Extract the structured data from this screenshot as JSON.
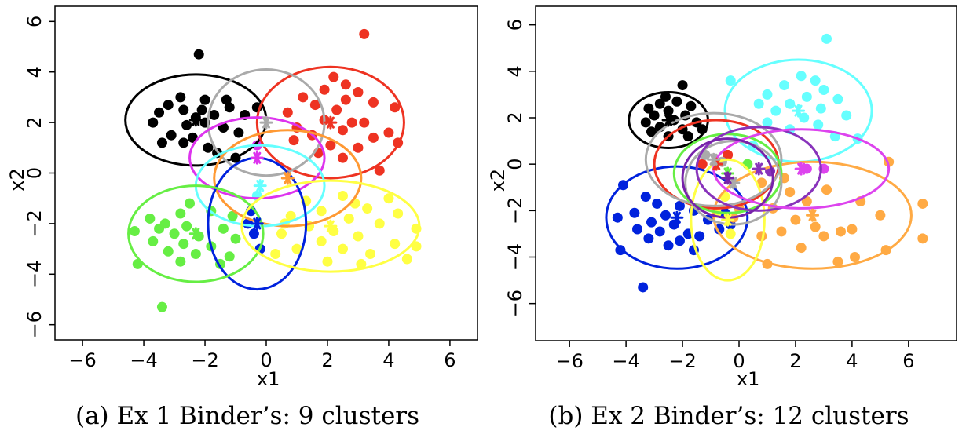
{
  "chart_data": [
    {
      "type": "scatter",
      "caption": "(a) Ex 1 Binder’s: 9 clusters",
      "xlabel": "x1",
      "ylabel": "x2",
      "xlim": [
        -6.9,
        6.9
      ],
      "ylim": [
        -6.6,
        6.6
      ],
      "xticks": [
        -6,
        -4,
        -2,
        0,
        2,
        4,
        6
      ],
      "yticks": [
        -6,
        -4,
        -2,
        0,
        2,
        4,
        6
      ],
      "grid": false,
      "clusters": [
        {
          "color": "#000000",
          "center": [
            -2.3,
            2.1
          ],
          "ellipse": {
            "rx": 2.3,
            "ry": 1.8
          },
          "points": [
            [
              -2.2,
              4.7
            ],
            [
              -2.8,
              3.0
            ],
            [
              -3.2,
              2.7
            ],
            [
              -2.0,
              2.9
            ],
            [
              -1.3,
              2.9
            ],
            [
              -0.3,
              2.6
            ],
            [
              -1.2,
              2.6
            ],
            [
              -2.7,
              2.5
            ],
            [
              -3.5,
              2.4
            ],
            [
              -0.7,
              2.3
            ],
            [
              -2.3,
              2.2
            ],
            [
              -3.7,
              2.0
            ],
            [
              -2.0,
              2.0
            ],
            [
              -1.4,
              1.8
            ],
            [
              -0.9,
              1.6
            ],
            [
              -3.1,
              1.5
            ],
            [
              -2.4,
              1.4
            ],
            [
              -3.4,
              1.2
            ],
            [
              -2.7,
              1.2
            ],
            [
              -1.9,
              1.0
            ],
            [
              -1.6,
              0.8
            ],
            [
              -1.0,
              0.6
            ],
            [
              -2.1,
              2.5
            ],
            [
              -1.7,
              2.3
            ],
            [
              -2.6,
              1.9
            ]
          ]
        },
        {
          "color": "#ee3322",
          "center": [
            2.1,
            2.0
          ],
          "ellipse": {
            "rx": 2.4,
            "ry": 2.2
          },
          "points": [
            [
              3.2,
              5.5
            ],
            [
              2.2,
              3.8
            ],
            [
              2.6,
              3.5
            ],
            [
              1.9,
              3.3
            ],
            [
              3.0,
              3.2
            ],
            [
              1.2,
              3.0
            ],
            [
              2.6,
              2.9
            ],
            [
              1.6,
              2.7
            ],
            [
              3.5,
              2.8
            ],
            [
              2.3,
              2.5
            ],
            [
              4.2,
              2.6
            ],
            [
              0.7,
              2.4
            ],
            [
              1.9,
              2.1
            ],
            [
              3.2,
              2.0
            ],
            [
              2.8,
              2.0
            ],
            [
              1.0,
              1.8
            ],
            [
              2.5,
              1.7
            ],
            [
              4.0,
              1.6
            ],
            [
              1.5,
              1.5
            ],
            [
              3.5,
              1.4
            ],
            [
              0.9,
              1.3
            ],
            [
              2.1,
              1.1
            ],
            [
              3.0,
              1.0
            ],
            [
              4.3,
              1.2
            ],
            [
              1.7,
              0.8
            ],
            [
              2.5,
              0.6
            ],
            [
              3.7,
              0.1
            ]
          ]
        },
        {
          "color": "#aaaaaa",
          "center": [
            0.0,
            2.0
          ],
          "ellipse": {
            "rx": 1.9,
            "ry": 2.1
          },
          "points": []
        },
        {
          "color": "#dd33ee",
          "center": [
            -0.3,
            0.6
          ],
          "ellipse": {
            "rx": 2.2,
            "ry": 1.6
          },
          "points": [
            [
              -0.3,
              1.1
            ]
          ]
        },
        {
          "color": "#ff9933",
          "center": [
            0.7,
            -0.2
          ],
          "ellipse": {
            "rx": 2.4,
            "ry": 1.9
          },
          "points": []
        },
        {
          "color": "#66ffff",
          "center": [
            -0.2,
            -0.5
          ],
          "ellipse": {
            "rx": 2.1,
            "ry": 1.6
          },
          "points": [
            [
              -0.3,
              -0.9
            ]
          ]
        },
        {
          "color": "#0022dd",
          "center": [
            -0.3,
            -2.0
          ],
          "ellipse": {
            "rx": 1.6,
            "ry": 2.6
          },
          "points": [
            [
              -0.5,
              -1.5
            ],
            [
              -0.4,
              -2.4
            ],
            [
              -0.2,
              -3.0
            ],
            [
              -0.6,
              -2.0
            ]
          ]
        },
        {
          "color": "#66ee44",
          "center": [
            -2.3,
            -2.4
          ],
          "ellipse": {
            "rx": 2.2,
            "ry": 1.9
          },
          "points": [
            [
              -3.4,
              -5.3
            ],
            [
              -4.2,
              -3.6
            ],
            [
              -3.8,
              -1.8
            ],
            [
              -2.8,
              -1.6
            ],
            [
              -1.8,
              -1.5
            ],
            [
              -3.3,
              -2.0
            ],
            [
              -2.6,
              -2.1
            ],
            [
              -1.4,
              -2.2
            ],
            [
              -4.3,
              -2.3
            ],
            [
              -3.0,
              -2.4
            ],
            [
              -2.2,
              -2.5
            ],
            [
              -1.0,
              -2.6
            ],
            [
              -3.7,
              -2.7
            ],
            [
              -2.7,
              -2.8
            ],
            [
              -1.8,
              -2.9
            ],
            [
              -3.2,
              -3.1
            ],
            [
              -2.3,
              -3.2
            ],
            [
              -1.2,
              -3.3
            ],
            [
              -2.8,
              -3.5
            ],
            [
              -1.5,
              -3.6
            ],
            [
              -3.5,
              -2.2
            ],
            [
              -1.1,
              -1.7
            ],
            [
              -2.5,
              -1.2
            ]
          ]
        },
        {
          "color": "#ffff44",
          "center": [
            2.1,
            -2.1
          ],
          "ellipse": {
            "rx": 2.9,
            "ry": 1.8
          },
          "points": [
            [
              4.0,
              -1.0
            ],
            [
              2.5,
              -0.9
            ],
            [
              1.3,
              -1.1
            ],
            [
              3.3,
              -1.4
            ],
            [
              1.8,
              -1.5
            ],
            [
              4.3,
              -1.6
            ],
            [
              0.8,
              -1.7
            ],
            [
              2.7,
              -1.8
            ],
            [
              3.7,
              -2.0
            ],
            [
              1.4,
              -2.1
            ],
            [
              2.2,
              -2.3
            ],
            [
              4.9,
              -2.2
            ],
            [
              0.5,
              -2.4
            ],
            [
              3.0,
              -2.5
            ],
            [
              1.8,
              -2.7
            ],
            [
              4.2,
              -2.8
            ],
            [
              2.5,
              -3.0
            ],
            [
              1.0,
              -3.0
            ],
            [
              3.4,
              -3.2
            ],
            [
              0.3,
              -3.2
            ],
            [
              4.6,
              -3.4
            ],
            [
              2.0,
              -3.5
            ],
            [
              3.1,
              -3.6
            ],
            [
              4.9,
              -2.9
            ],
            [
              0.6,
              -2.0
            ],
            [
              2.9,
              -1.2
            ]
          ]
        }
      ]
    },
    {
      "type": "scatter",
      "caption": "(b) Ex 2 Binder’s: 12 clusters",
      "xlabel": "x1",
      "ylabel": "x2",
      "xlim": [
        -7.2,
        7.7
      ],
      "ylim": [
        -7.6,
        6.8
      ],
      "xticks": [
        -6,
        -4,
        -2,
        0,
        2,
        4,
        6
      ],
      "yticks": [
        -6,
        -4,
        -2,
        0,
        2,
        4,
        6
      ],
      "grid": false,
      "clusters": [
        {
          "color": "#000000",
          "center": [
            -2.5,
            1.9
          ],
          "ellipse": {
            "rx": 1.4,
            "ry": 1.2
          },
          "points": [
            [
              -2.0,
              3.4
            ],
            [
              -2.2,
              2.7
            ],
            [
              -2.8,
              2.6
            ],
            [
              -3.2,
              2.4
            ],
            [
              -1.7,
              2.5
            ],
            [
              -2.5,
              2.3
            ],
            [
              -3.0,
              2.1
            ],
            [
              -1.9,
              2.1
            ],
            [
              -2.3,
              1.9
            ],
            [
              -3.3,
              1.8
            ],
            [
              -1.5,
              1.8
            ],
            [
              -2.8,
              1.6
            ],
            [
              -2.0,
              1.5
            ],
            [
              -3.1,
              1.4
            ],
            [
              -1.8,
              1.2
            ],
            [
              -2.5,
              1.2
            ],
            [
              -1.3,
              1.5
            ],
            [
              -2.6,
              2.9
            ]
          ]
        },
        {
          "color": "#66ffff",
          "center": [
            2.1,
            2.3
          ],
          "ellipse": {
            "rx": 2.6,
            "ry": 2.2
          },
          "points": [
            [
              3.1,
              5.4
            ],
            [
              2.2,
              3.8
            ],
            [
              2.7,
              3.6
            ],
            [
              1.6,
              3.4
            ],
            [
              3.0,
              3.2
            ],
            [
              -0.3,
              3.6
            ],
            [
              1.0,
              3.0
            ],
            [
              2.4,
              2.9
            ],
            [
              3.5,
              2.8
            ],
            [
              1.8,
              2.6
            ],
            [
              2.9,
              2.4
            ],
            [
              0.7,
              2.6
            ],
            [
              1.3,
              2.3
            ],
            [
              2.3,
              2.0
            ],
            [
              3.8,
              2.1
            ],
            [
              1.0,
              1.8
            ],
            [
              2.8,
              1.7
            ],
            [
              1.8,
              1.5
            ],
            [
              4.2,
              1.1
            ],
            [
              3.4,
              1.2
            ],
            [
              0.5,
              0.8
            ]
          ]
        },
        {
          "color": "#0022dd",
          "center": [
            -2.2,
            -2.3
          ],
          "ellipse": {
            "rx": 2.5,
            "ry": 2.2
          },
          "points": [
            [
              -3.4,
              -5.3
            ],
            [
              -4.2,
              -3.7
            ],
            [
              -3.3,
              -1.4
            ],
            [
              -4.1,
              -0.9
            ],
            [
              -2.9,
              -1.7
            ],
            [
              -2.1,
              -1.8
            ],
            [
              -3.7,
              -2.1
            ],
            [
              -2.6,
              -2.2
            ],
            [
              -1.6,
              -2.0
            ],
            [
              -4.3,
              -2.3
            ],
            [
              -3.1,
              -2.5
            ],
            [
              -2.3,
              -2.6
            ],
            [
              -1.1,
              -2.4
            ],
            [
              -3.6,
              -2.8
            ],
            [
              -2.8,
              -2.9
            ],
            [
              -1.8,
              -3.0
            ],
            [
              -3.2,
              -3.2
            ],
            [
              -2.1,
              -3.3
            ],
            [
              -1.4,
              -3.1
            ],
            [
              -2.5,
              -3.5
            ],
            [
              -1.6,
              -3.7
            ],
            [
              -0.5,
              -2.1
            ],
            [
              -0.7,
              -2.8
            ],
            [
              -0.3,
              -2.6
            ]
          ]
        },
        {
          "color": "#ffaa44",
          "center": [
            2.6,
            -2.2
          ],
          "ellipse": {
            "rx": 3.5,
            "ry": 2.3
          },
          "points": [
            [
              6.5,
              -1.7
            ],
            [
              6.5,
              -3.2
            ],
            [
              5.3,
              0.1
            ],
            [
              5.0,
              -2.2
            ],
            [
              5.2,
              -3.7
            ],
            [
              4.3,
              -1.6
            ],
            [
              4.0,
              -2.8
            ],
            [
              4.1,
              -4.0
            ],
            [
              3.6,
              -2.9
            ],
            [
              3.5,
              -4.2
            ],
            [
              3.0,
              -3.1
            ],
            [
              2.7,
              -2.7
            ],
            [
              2.4,
              -1.6
            ],
            [
              3.1,
              -1.1
            ],
            [
              2.0,
              -2.4
            ],
            [
              1.8,
              -1.2
            ],
            [
              1.2,
              -1.9
            ],
            [
              1.5,
              -2.9
            ],
            [
              2.2,
              -3.6
            ],
            [
              1.0,
              -4.3
            ],
            [
              0.8,
              -3.1
            ],
            [
              0.0,
              -1.9
            ],
            [
              -0.2,
              -2.3
            ],
            [
              0.8,
              -0.8
            ],
            [
              1.6,
              -0.6
            ]
          ]
        },
        {
          "color": "#ffff44",
          "center": [
            -0.4,
            -2.4
          ],
          "ellipse": {
            "rx": 1.3,
            "ry": 2.6
          },
          "points": [
            [
              -0.5,
              -1.4
            ],
            [
              -0.8,
              -2.1
            ],
            [
              -0.3,
              -3.0
            ]
          ]
        },
        {
          "color": "#ee3322",
          "center": [
            -0.8,
            0.0
          ],
          "ellipse": {
            "rx": 2.2,
            "ry": 1.9
          },
          "points": [
            [
              -1.3,
              0.0
            ],
            [
              -0.4,
              0.4
            ]
          ]
        },
        {
          "color": "#aaaaaa",
          "center": [
            -0.9,
            0.2
          ],
          "ellipse": {
            "rx": 2.4,
            "ry": 2.0
          },
          "points": [
            [
              -1.2,
              0.4
            ],
            [
              -0.6,
              0.1
            ]
          ]
        },
        {
          "color": "#66ee44",
          "center": [
            -0.4,
            -0.4
          ],
          "ellipse": {
            "rx": 1.9,
            "ry": 1.7
          },
          "points": [
            [
              0.3,
              0.0
            ]
          ]
        },
        {
          "color": "#aaaaaa",
          "center": [
            -0.2,
            -0.8
          ],
          "ellipse": {
            "rx": 1.7,
            "ry": 1.8
          },
          "points": []
        },
        {
          "color": "#8833bb",
          "center": [
            0.7,
            -0.2
          ],
          "ellipse": {
            "rx": 2.2,
            "ry": 1.8
          },
          "points": [
            [
              1.1,
              -0.3
            ]
          ]
        },
        {
          "color": "#dd44ee",
          "center": [
            2.2,
            -0.2
          ],
          "ellipse": {
            "rx": 3.1,
            "ry": 1.7
          },
          "points": [
            [
              2.4,
              -0.2
            ],
            [
              3.0,
              -0.2
            ]
          ]
        },
        {
          "color": "#7722aa",
          "center": [
            -0.4,
            -0.6
          ],
          "ellipse": {
            "rx": 1.6,
            "ry": 1.7
          },
          "points": []
        }
      ]
    }
  ]
}
